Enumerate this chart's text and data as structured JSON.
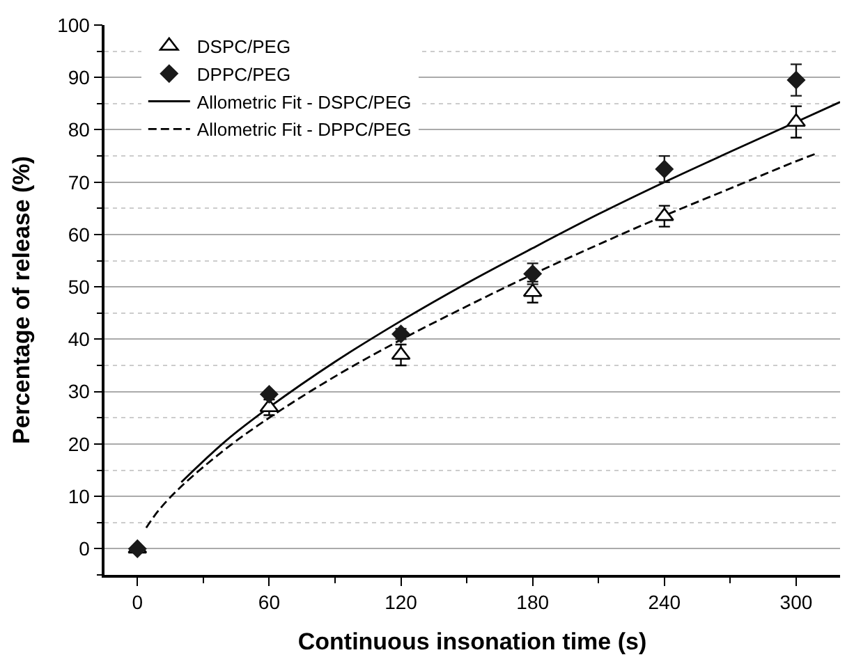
{
  "chart_data": {
    "type": "scatter",
    "xlabel": "Continuous insonation time (s)",
    "ylabel": "Percentage of release (%)",
    "x": [
      0,
      60,
      120,
      180,
      240,
      300
    ],
    "series": [
      {
        "name": "DSPC/PEG",
        "color": "#000000",
        "marker": "triangle",
        "values": [
          0,
          27,
          37,
          49,
          63.5,
          81.5
        ],
        "errors": [
          null,
          1.5,
          2,
          2,
          2,
          3
        ]
      },
      {
        "name": "DPPC/PEG",
        "color": "#1a1a1a",
        "marker": "diamond",
        "values": [
          0,
          29.5,
          41,
          52.5,
          72.5,
          89.5
        ],
        "errors": [
          null,
          null,
          1,
          2,
          2.5,
          3
        ]
      },
      {
        "name": "Allometric Fit - DSPC/PEG",
        "type": "line",
        "color": "#000000",
        "line_style": "solid",
        "marker": "none",
        "x": [
          20,
          40,
          60,
          90,
          120,
          150,
          180,
          210,
          240,
          270,
          300,
          320
        ],
        "values": [
          12.7,
          20.5,
          27,
          35.7,
          43.5,
          50.7,
          57.4,
          63.9,
          70,
          75.8,
          81.5,
          85.3
        ]
      },
      {
        "name": "Allometric Fit - DPPC/PEG",
        "type": "line",
        "color": "#000000",
        "line_style": "dashed",
        "marker": "none",
        "x": [
          4,
          10,
          20,
          40,
          60,
          90,
          120,
          150,
          180,
          210,
          240,
          270,
          300,
          310
        ],
        "values": [
          4,
          7.5,
          11.9,
          19,
          25,
          32.9,
          39.9,
          46.3,
          52.4,
          58.1,
          63.6,
          68.8,
          74,
          75.6
        ]
      }
    ],
    "xlim": [
      -15,
      320
    ],
    "xticks": [
      0,
      60,
      120,
      180,
      240,
      300
    ],
    "ylim": [
      -5,
      100
    ],
    "yticks": [
      0,
      10,
      20,
      30,
      40,
      50,
      60,
      70,
      80,
      90,
      100
    ],
    "grid": "y",
    "legend": "top left"
  }
}
